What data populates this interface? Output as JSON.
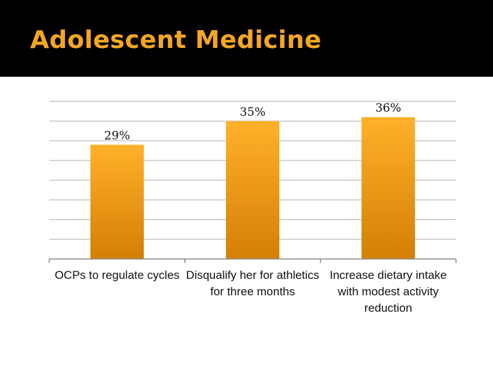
{
  "title": "Adolescent Medicine",
  "colors": {
    "title_bar": "#000000",
    "title_text": "#F5A623",
    "bar_top": "#FFB12A",
    "bar_bottom": "#D47F05",
    "gridline": "#BFBFBF",
    "axis": "#8C8C8C"
  },
  "chart_data": {
    "type": "bar",
    "title": "",
    "xlabel": "",
    "ylabel": "",
    "categories": [
      "OCPs to regulate cycles",
      "Disqualify her for athletics for three months",
      "Increase dietary intake with modest activity reduction"
    ],
    "values": [
      29,
      35,
      36
    ],
    "value_labels": [
      "29%",
      "35%",
      "36%"
    ],
    "ylim": [
      0,
      40
    ],
    "grid": true,
    "legend": "none"
  }
}
